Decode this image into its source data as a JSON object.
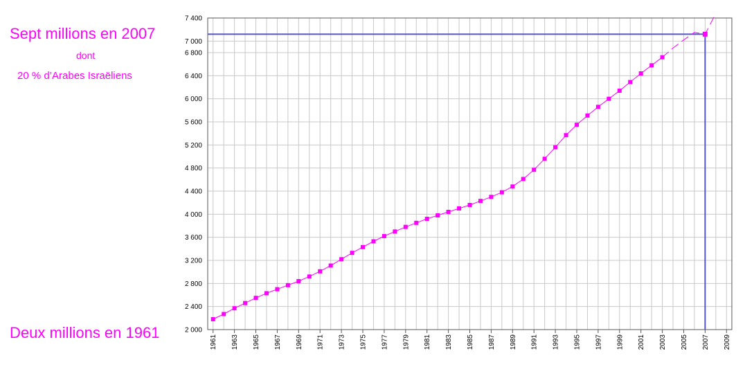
{
  "annotations": {
    "top": "Sept millions en 2007",
    "dont": "dont",
    "arabes": "20 % d’Arabes Israëliens",
    "bottom": "Deux millions en 1961"
  },
  "colors": {
    "series": "#ff00ff",
    "highlight_line": "#5555cc",
    "grid": "#c8c8c8",
    "axis": "#555555"
  },
  "chart_data": {
    "type": "line",
    "title": "",
    "xlabel": "",
    "ylabel": "",
    "xlim": [
      1960.5,
      2009.5
    ],
    "ylim": [
      2000,
      7400
    ],
    "y_ticks": [
      2000,
      2400,
      2800,
      3200,
      3600,
      4000,
      4400,
      4800,
      5200,
      5600,
      6000,
      6400,
      6800,
      7000,
      7400
    ],
    "y_tick_labels": [
      "2 000",
      "2 400",
      "2 800",
      "3 200",
      "3 600",
      "4 000",
      "4 400",
      "4 800",
      "5 200",
      "5 600",
      "6 000",
      "6 400",
      "6 800",
      "7 000",
      "7 400"
    ],
    "x_tick_labels": [
      "1961",
      "1963",
      "1965",
      "1967",
      "1969",
      "1971",
      "1973",
      "1975",
      "1977",
      "1979",
      "1981",
      "1983",
      "1985",
      "1987",
      "1989",
      "1991",
      "1993",
      "1995",
      "1997",
      "1999",
      "2001",
      "2003",
      "2005",
      "2007",
      "2009"
    ],
    "grid": true,
    "series": [
      {
        "x": [
          1961,
          1962,
          1963,
          1964,
          1965,
          1966,
          1967,
          1968,
          1969,
          1970,
          1971,
          1972,
          1973,
          1974,
          1975,
          1976,
          1977,
          1978,
          1979,
          1980,
          1981,
          1982,
          1983,
          1984,
          1985,
          1986,
          1987,
          1988,
          1989,
          1990,
          1991,
          1992,
          1993,
          1994,
          1995,
          1996,
          1997,
          1998,
          1999,
          2000,
          2001,
          2002,
          2003
        ],
        "values": [
          2180,
          2270,
          2370,
          2460,
          2550,
          2630,
          2700,
          2770,
          2840,
          2920,
          3010,
          3110,
          3220,
          3330,
          3430,
          3530,
          3620,
          3700,
          3780,
          3850,
          3920,
          3980,
          4040,
          4100,
          4160,
          4230,
          4300,
          4380,
          4480,
          4610,
          4770,
          4960,
          5160,
          5370,
          5550,
          5710,
          5860,
          6000,
          6140,
          6290,
          6440,
          6580,
          6720
        ]
      }
    ],
    "projection": {
      "x": [
        2003,
        2004,
        2005,
        2006,
        2007,
        2008
      ],
      "values": [
        6720,
        6880,
        7020,
        7150,
        7120,
        7480
      ]
    },
    "highlight_point": {
      "x": 2007,
      "y": 7120
    }
  }
}
